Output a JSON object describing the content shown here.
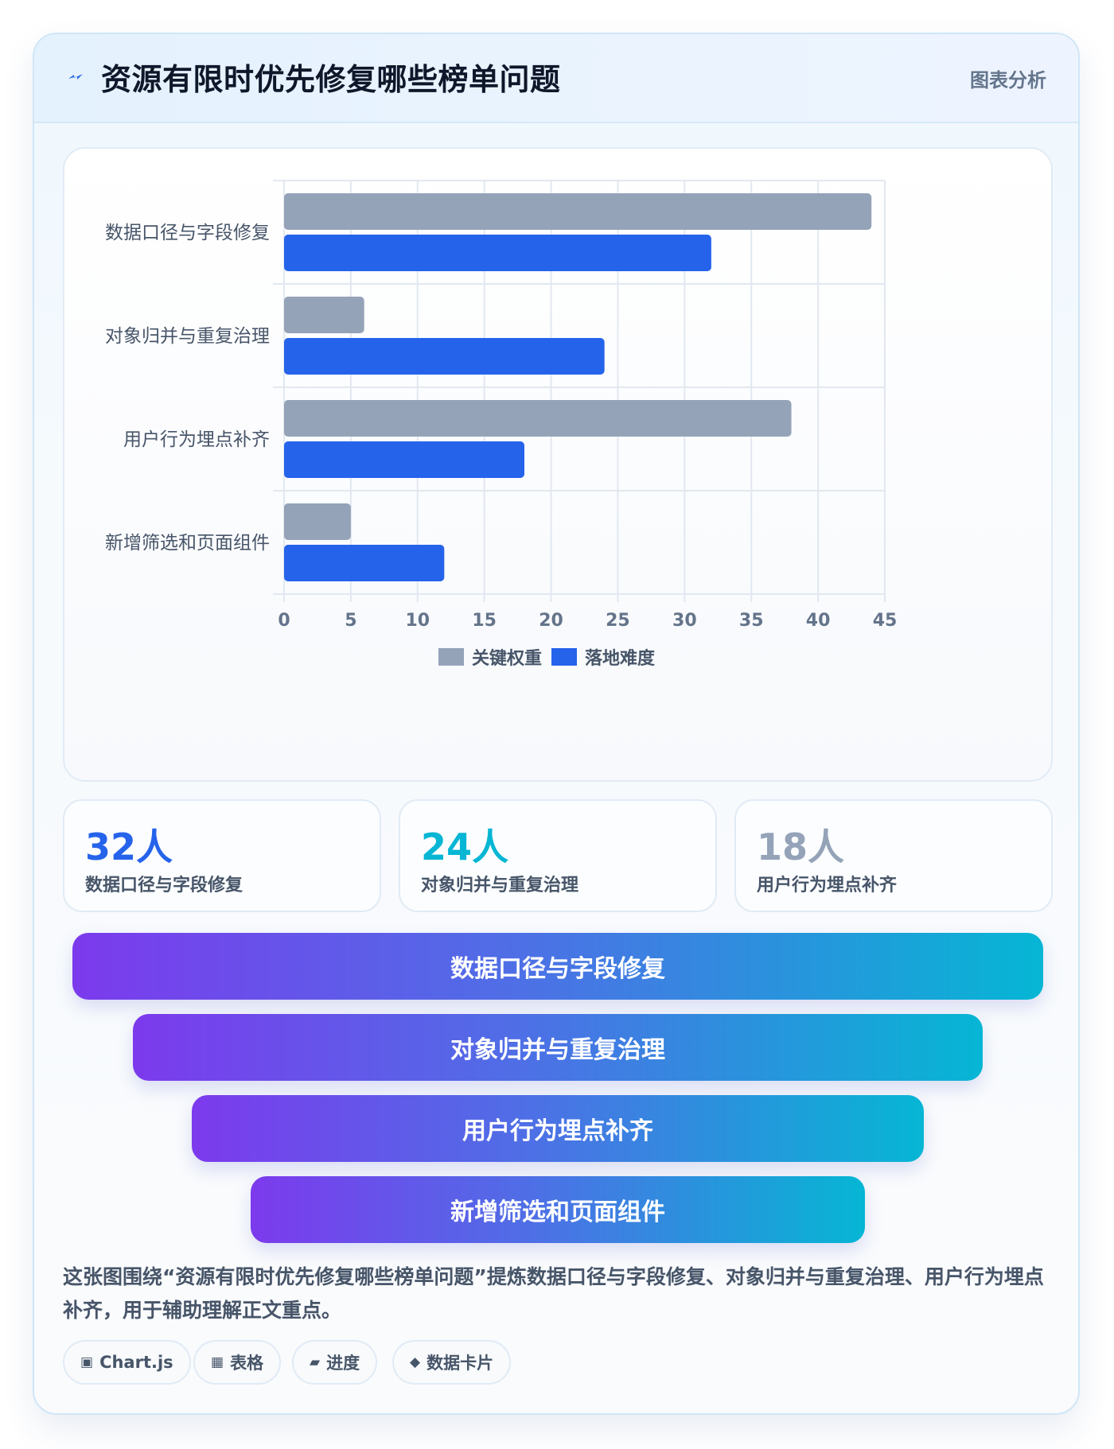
{
  "header": {
    "title": "资源有限时优先修复哪些榜单问题",
    "badge": "图表分析"
  },
  "chart_data": {
    "type": "bar",
    "orientation": "horizontal",
    "categories": [
      "数据口径与字段修复",
      "对象归并与重复治理",
      "用户行为埋点补齐",
      "新增筛选和页面组件"
    ],
    "series": [
      {
        "name": "关键权重",
        "values": [
          44,
          6,
          38,
          5
        ],
        "color": "#94a3b8"
      },
      {
        "name": "落地难度",
        "values": [
          32,
          24,
          18,
          12
        ],
        "color": "#2563eb"
      }
    ],
    "xlim": [
      0,
      45
    ],
    "xticks": [
      "0",
      "5",
      "10",
      "15",
      "20",
      "25",
      "30",
      "35",
      "40",
      "45"
    ],
    "grid": true,
    "legend_position": "bottom"
  },
  "stats": [
    {
      "value": "32人",
      "label": "数据口径与字段修复",
      "color": "#2563eb"
    },
    {
      "value": "24人",
      "label": "对象归并与重复治理",
      "color": "#06b6d4"
    },
    {
      "value": "18人",
      "label": "用户行为埋点补齐",
      "color": "#94a3b8"
    }
  ],
  "funnel": [
    "数据口径与字段修复",
    "对象归并与重复治理",
    "用户行为埋点补齐",
    "新增筛选和页面组件"
  ],
  "description": "这张图围绕“资源有限时优先修复哪些榜单问题”提炼数据口径与字段修复、对象归并与重复治理、用户行为埋点补齐，用于辅助理解正文重点。",
  "tags": [
    {
      "icon": "▣",
      "icon_name": "chart-icon",
      "label": "Chart.js"
    },
    {
      "icon": "▦",
      "icon_name": "table-icon",
      "label": "表格"
    },
    {
      "icon": "▰",
      "icon_name": "progress-icon",
      "label": "进度"
    },
    {
      "icon": "◆",
      "icon_name": "data-card-icon",
      "label": "数据卡片"
    }
  ]
}
